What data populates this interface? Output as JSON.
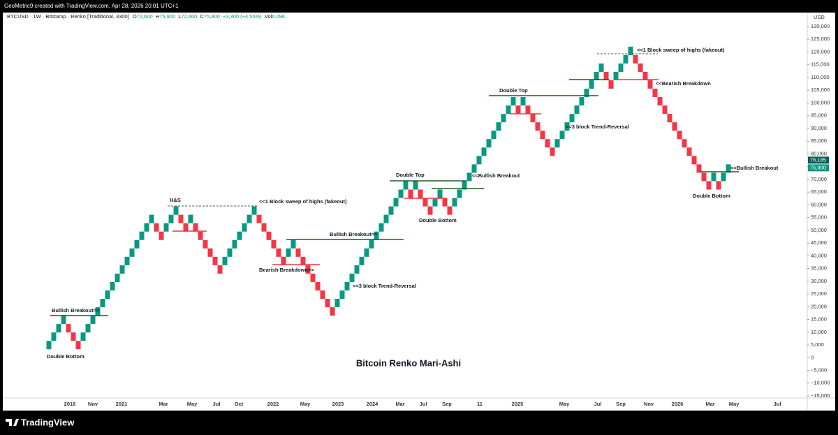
{
  "header": "GeoMetric9 created with TradingView.com, Apr 28, 2026 20:01 UTC+1",
  "brand": "TradingView",
  "legend": {
    "symbol": "BTCUSD · 1W · Bitstamp · Renko [Traditional, 3300]",
    "ohlc": [
      {
        "key": "O",
        "value": "72,600"
      },
      {
        "key": "H",
        "value": "75,900"
      },
      {
        "key": "L",
        "value": "72,600"
      },
      {
        "key": "C",
        "value": "75,900"
      }
    ],
    "change": "+3,300 (+4.55%)",
    "volume_key": "Vol",
    "volume": "6.09K"
  },
  "chart_data": {
    "type": "renko",
    "title": "Bitcoin Renko Mari-Ashi",
    "currency": "USD",
    "up_color": "#089981",
    "down_color": "#f23645",
    "grid": false,
    "open": [
      3300,
      6600,
      9900,
      13200,
      13200,
      9900,
      6600,
      6600,
      9900,
      13200,
      16500,
      19800,
      23100,
      26400,
      29700,
      33000,
      36300,
      39600,
      42900,
      46200,
      49500,
      52800,
      52800,
      49500,
      49500,
      52800,
      56100,
      56100,
      52800,
      52800,
      52800,
      49500,
      46200,
      42900,
      39600,
      36300,
      36300,
      39600,
      42900,
      46200,
      49500,
      52800,
      56100,
      56100,
      52800,
      49500,
      46200,
      42900,
      39600,
      39600,
      42900,
      42900,
      39600,
      36300,
      33000,
      29700,
      26400,
      23100,
      19800,
      19800,
      23100,
      26400,
      29700,
      33000,
      36300,
      39600,
      42900,
      46200,
      49500,
      52800,
      56100,
      59400,
      62700,
      66000,
      66000,
      66000,
      66000,
      62700,
      59400,
      59400,
      62700,
      62700,
      59400,
      59400,
      62700,
      66000,
      69300,
      72600,
      75900,
      79200,
      82500,
      85800,
      89100,
      92400,
      95700,
      99000,
      99000,
      99000,
      99000,
      95700,
      92400,
      89100,
      85800,
      82500,
      82500,
      85800,
      89100,
      92400,
      95700,
      99000,
      102300,
      105600,
      108900,
      112200,
      112200,
      108900,
      108900,
      112200,
      115500,
      118800,
      118800,
      115500,
      112200,
      108900,
      105600,
      102300,
      99000,
      95700,
      92400,
      89100,
      85800,
      82500,
      79200,
      75900,
      72600,
      69300,
      69300,
      69300,
      69300,
      72600
    ],
    "close": [
      6600,
      9900,
      13200,
      16500,
      9900,
      6600,
      3300,
      9900,
      13200,
      16500,
      19800,
      23100,
      26400,
      29700,
      33000,
      36300,
      39600,
      42900,
      46200,
      49500,
      52800,
      56100,
      49500,
      46200,
      52800,
      56100,
      59400,
      52800,
      49500,
      56100,
      49500,
      46200,
      42900,
      39600,
      36300,
      33000,
      39600,
      42900,
      46200,
      49500,
      52800,
      56100,
      59400,
      52800,
      49500,
      46200,
      42900,
      39600,
      36300,
      42900,
      46200,
      39600,
      36300,
      33000,
      29700,
      26400,
      23100,
      19800,
      16500,
      23100,
      26400,
      29700,
      33000,
      36300,
      39600,
      42900,
      46200,
      49500,
      52800,
      56100,
      59400,
      62700,
      66000,
      69300,
      62700,
      69300,
      62700,
      59400,
      56100,
      62700,
      66000,
      59400,
      56100,
      62700,
      66000,
      69300,
      72600,
      75900,
      79200,
      82500,
      85800,
      89100,
      92400,
      95700,
      99000,
      102300,
      95700,
      102300,
      95700,
      92400,
      89100,
      85800,
      82500,
      79200,
      85800,
      89100,
      92400,
      95700,
      99000,
      102300,
      105600,
      108900,
      112200,
      115500,
      108900,
      105600,
      112200,
      115500,
      118800,
      122100,
      115500,
      112200,
      108900,
      105600,
      102300,
      99000,
      95700,
      92400,
      89100,
      85800,
      82500,
      79200,
      75900,
      72600,
      69300,
      66000,
      72600,
      66000,
      72600,
      75900
    ],
    "ylim": [
      -15000,
      130000
    ],
    "yticks": [
      {
        "value": 130000,
        "label": "130,000"
      },
      {
        "value": 125000,
        "label": "125,000"
      },
      {
        "value": 120000,
        "label": "120,000"
      },
      {
        "value": 115000,
        "label": "115,000"
      },
      {
        "value": 110000,
        "label": "110,000"
      },
      {
        "value": 105000,
        "label": "105,000"
      },
      {
        "value": 100000,
        "label": "100,000"
      },
      {
        "value": 95000,
        "label": "95,000"
      },
      {
        "value": 90000,
        "label": "90,000"
      },
      {
        "value": 85000,
        "label": "85,000"
      },
      {
        "value": 80000,
        "label": "80,000"
      },
      {
        "value": 75000,
        "label": "75,000"
      },
      {
        "value": 70000,
        "label": "70,000"
      },
      {
        "value": 65000,
        "label": "65,000"
      },
      {
        "value": 60000,
        "label": "60,000"
      },
      {
        "value": 55000,
        "label": "55,000"
      },
      {
        "value": 50000,
        "label": "50,000"
      },
      {
        "value": 45000,
        "label": "45,000"
      },
      {
        "value": 40000,
        "label": "40,000"
      },
      {
        "value": 35000,
        "label": "35,000"
      },
      {
        "value": 30000,
        "label": "30,000"
      },
      {
        "value": 25000,
        "label": "25,000"
      },
      {
        "value": 20000,
        "label": "20,000"
      },
      {
        "value": 15000,
        "label": "15,000"
      },
      {
        "value": 10000,
        "label": "10,000"
      },
      {
        "value": 5000,
        "label": "5,000"
      },
      0,
      {
        "value": -5000,
        "label": "−5,000"
      },
      {
        "value": -10000,
        "label": "−10,000"
      },
      {
        "value": -15000,
        "label": "−15,000"
      }
    ],
    "price_labels": [
      {
        "value": 76185,
        "label": "76,185",
        "color": "#0b5e57"
      },
      {
        "value": 75900,
        "label": "75,900",
        "color": "#089981"
      }
    ],
    "x_labels": [
      "2018",
      "Nov",
      "2021",
      "Mar",
      "May",
      "Jul",
      "Oct",
      "2022",
      "May",
      "2023",
      "2024",
      "Mar",
      "Jul",
      "Sep",
      "11",
      "2025",
      "May",
      "Jul",
      "Sep",
      "Nov",
      "2026",
      "Mar",
      "May",
      "Jul"
    ],
    "annotations": [
      "Bullish Breakout>>",
      "Double Bottom",
      "H&S",
      "<<1 Block sweep of highs (fakeout)",
      "Bearish Breakdown>>",
      "Bullish Breakout>>",
      "<<3 block Trend-Reversal",
      "Double Top",
      "<<Bullish Breakout",
      "Double Bottom",
      "Double Top",
      "<<3 block Trend-Reversal",
      "<<1 Block sweep of highs (fakeout)",
      "<<Bearish Breakdown",
      "<<Bullish Breakout",
      "Double Bottom"
    ]
  }
}
